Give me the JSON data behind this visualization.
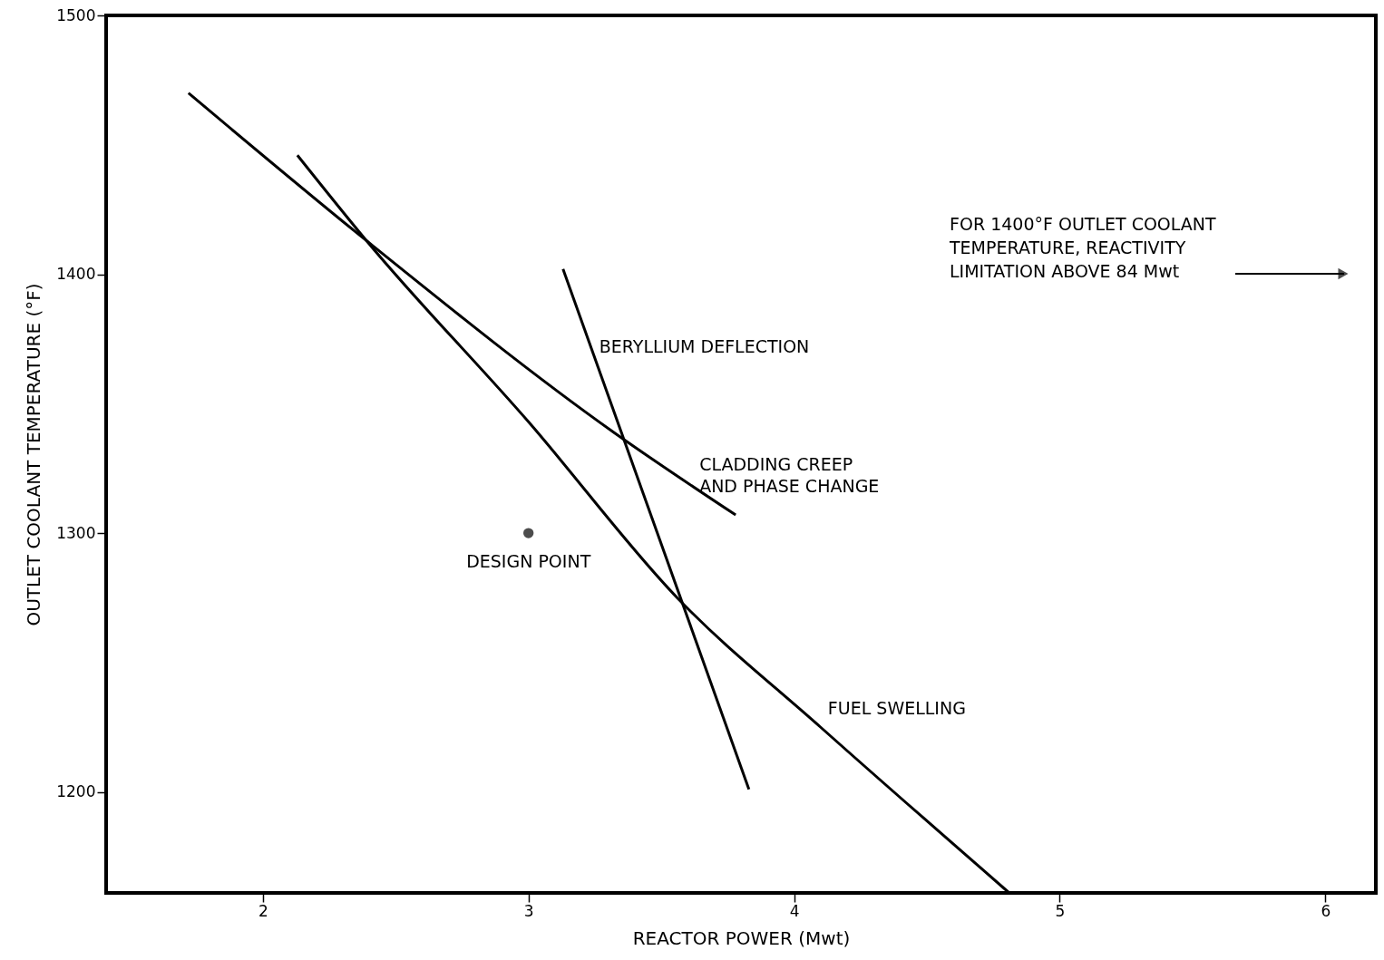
{
  "chart_data": {
    "type": "line",
    "xlabel": "REACTOR POWER (Mwt)",
    "ylabel": "OUTLET COOLANT TEMPERATURE (°F)",
    "xlim": [
      1.41,
      6.19
    ],
    "xticks": [
      2,
      3,
      4,
      5,
      6
    ],
    "ylim": [
      1161,
      1500
    ],
    "yticks": [
      1200,
      1300,
      1400,
      1500
    ],
    "grid": false,
    "marker": "none",
    "line_style": "solid",
    "series": [
      {
        "name": "FUEL SWELLING",
        "color": "#000000",
        "x": [
          2.13,
          2.39,
          3.0,
          3.56,
          4.1,
          4.81
        ],
        "values": [
          1446,
          1413,
          1343,
          1275,
          1225,
          1161
        ]
      },
      {
        "name": "CLADDING CREEP\nAND PHASE CHANGE",
        "color": "#000000",
        "x": [
          1.72,
          2.39,
          3.32,
          3.78
        ],
        "values": [
          1470,
          1413,
          1339,
          1307
        ]
      },
      {
        "name": "BERYLLIUM DEFLECTION",
        "color": "#000000",
        "x": [
          3.13,
          3.83
        ],
        "values": [
          1402,
          1201
        ]
      },
      {
        "name": "DESIGN POINT",
        "type": "scatter",
        "marker": "circle",
        "color": "#000000",
        "x": [
          3.0
        ],
        "values": [
          1300
        ]
      }
    ],
    "annotations": [
      "FOR 1400°F OUTLET COOLANT\nTEMPERATURE, REACTIVITY\nLIMITATION ABOVE 84 Mwt"
    ]
  }
}
